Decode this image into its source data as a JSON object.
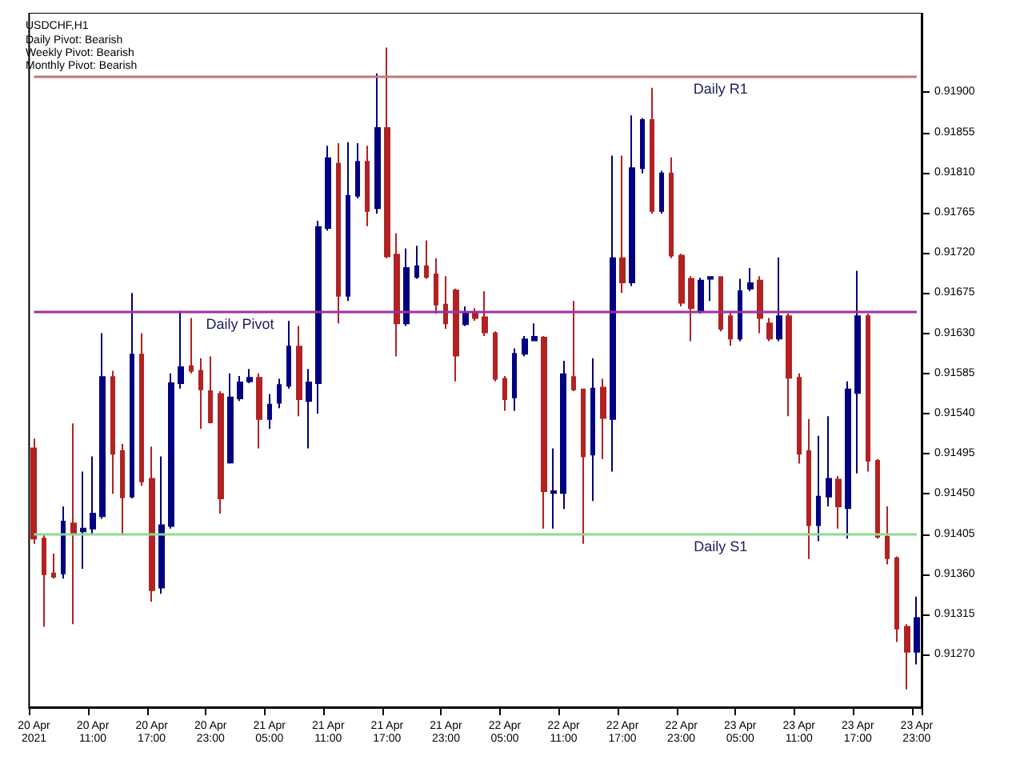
{
  "chart_data": {
    "type": "candlestick",
    "title": "USDCHF,H1",
    "annotations": [
      "Daily Pivot: Bearish",
      "Weekly Pivot: Bearish",
      "Monthly Pivot: Bearish"
    ],
    "categories": [
      "20 Apr 2021",
      null,
      null,
      null,
      null,
      null,
      "20 Apr 11:00",
      null,
      null,
      null,
      null,
      null,
      "20 Apr 17:00",
      null,
      null,
      null,
      null,
      null,
      "20 Apr 23:00",
      null,
      null,
      null,
      null,
      null,
      "21 Apr 05:00",
      null,
      null,
      null,
      null,
      null,
      "21 Apr 11:00",
      null,
      null,
      null,
      null,
      null,
      "21 Apr 17:00",
      null,
      null,
      null,
      null,
      null,
      "21 Apr 23:00",
      null,
      null,
      null,
      null,
      null,
      "22 Apr 05:00",
      null,
      null,
      null,
      null,
      null,
      "22 Apr 11:00",
      null,
      null,
      null,
      null,
      null,
      "22 Apr 17:00",
      null,
      null,
      null,
      null,
      null,
      "22 Apr 23:00",
      null,
      null,
      null,
      null,
      null,
      "23 Apr 05:00",
      null,
      null,
      null,
      null,
      null,
      "23 Apr 11:00",
      null,
      null,
      null,
      null,
      null,
      "23 Apr 17:00",
      null,
      null,
      null,
      null,
      null,
      "23 Apr 23:00"
    ],
    "ohlc": [
      [
        0.91501,
        0.91512,
        0.91394,
        0.914
      ],
      [
        0.914,
        0.91405,
        0.91301,
        0.9136
      ],
      [
        0.91361,
        0.91383,
        0.91355,
        0.91357
      ],
      [
        0.91361,
        0.91436,
        0.91355,
        0.91419
      ],
      [
        0.91417,
        0.91529,
        0.91304,
        0.91405
      ],
      [
        0.91408,
        0.91475,
        0.91366,
        0.91411
      ],
      [
        0.91411,
        0.91492,
        0.91405,
        0.91428
      ],
      [
        0.91425,
        0.9163,
        0.91422,
        0.91581
      ],
      [
        0.91581,
        0.91588,
        0.9145,
        0.91495
      ],
      [
        0.91498,
        0.91506,
        0.91405,
        0.91446
      ],
      [
        0.91447,
        0.91675,
        0.91445,
        0.91606
      ],
      [
        0.91606,
        0.9163,
        0.91459,
        0.91464
      ],
      [
        0.91467,
        0.91503,
        0.91329,
        0.91342
      ],
      [
        0.91345,
        0.91492,
        0.91338,
        0.91415
      ],
      [
        0.91414,
        0.91585,
        0.91411,
        0.91574
      ],
      [
        0.91574,
        0.91655,
        0.91568,
        0.91592
      ],
      [
        0.91593,
        0.91647,
        0.91585,
        0.91588
      ],
      [
        0.91588,
        0.91602,
        0.91523,
        0.91567
      ],
      [
        0.91565,
        0.91604,
        0.91529,
        0.9153
      ],
      [
        0.91562,
        0.91565,
        0.91428,
        0.91445
      ],
      [
        0.91485,
        0.91585,
        0.91484,
        0.91558
      ],
      [
        0.91557,
        0.91582,
        0.91554,
        0.91575
      ],
      [
        0.91576,
        0.9159,
        0.91574,
        0.9158
      ],
      [
        0.9158,
        0.91585,
        0.91501,
        0.91534
      ],
      [
        0.91534,
        0.91562,
        0.91523,
        0.9155
      ],
      [
        0.91552,
        0.91579,
        0.91546,
        0.91572
      ],
      [
        0.91571,
        0.91644,
        0.91568,
        0.91615
      ],
      [
        0.91615,
        0.91638,
        0.91537,
        0.91556
      ],
      [
        0.91554,
        0.9159,
        0.91501,
        0.91575
      ],
      [
        0.91574,
        0.91756,
        0.9154,
        0.91749
      ],
      [
        0.91748,
        0.9184,
        0.91745,
        0.91826
      ],
      [
        0.9182,
        0.91843,
        0.91641,
        0.91672
      ],
      [
        0.91672,
        0.91844,
        0.91666,
        0.91784
      ],
      [
        0.91784,
        0.91843,
        0.91781,
        0.91822
      ],
      [
        0.91822,
        0.9184,
        0.9175,
        0.91767
      ],
      [
        0.9177,
        0.91921,
        0.91764,
        0.9186
      ],
      [
        0.9186,
        0.9195,
        0.91714,
        0.91716
      ],
      [
        0.91718,
        0.91742,
        0.91604,
        0.91641
      ],
      [
        0.91641,
        0.91725,
        0.91638,
        0.91703
      ],
      [
        0.91693,
        0.91728,
        0.91691,
        0.91705
      ],
      [
        0.91705,
        0.91734,
        0.91691,
        0.91693
      ],
      [
        0.91696,
        0.91714,
        0.91652,
        0.91662
      ],
      [
        0.91662,
        0.91694,
        0.91635,
        0.91641
      ],
      [
        0.91678,
        0.9168,
        0.91576,
        0.91605
      ],
      [
        0.9164,
        0.9166,
        0.91638,
        0.91652
      ],
      [
        0.91652,
        0.91658,
        0.91644,
        0.91647
      ],
      [
        0.91648,
        0.91677,
        0.91627,
        0.91631
      ],
      [
        0.9163,
        0.91632,
        0.91576,
        0.91579
      ],
      [
        0.91579,
        0.91582,
        0.91543,
        0.91556
      ],
      [
        0.91558,
        0.91613,
        0.91543,
        0.91607
      ],
      [
        0.91607,
        0.91627,
        0.91604,
        0.91623
      ],
      [
        0.91622,
        0.91641,
        0.91621,
        0.91626
      ],
      [
        0.91625,
        0.91627,
        0.91411,
        0.91453
      ],
      [
        0.91451,
        0.91501,
        0.91411,
        0.91453
      ],
      [
        0.91451,
        0.91599,
        0.91433,
        0.91584
      ],
      [
        0.91581,
        0.91666,
        0.91565,
        0.91567
      ],
      [
        0.91567,
        0.91568,
        0.91394,
        0.91492
      ],
      [
        0.91494,
        0.91602,
        0.91442,
        0.91568
      ],
      [
        0.91569,
        0.91579,
        0.91489,
        0.91535
      ],
      [
        0.91534,
        0.91829,
        0.91475,
        0.91714
      ],
      [
        0.91714,
        0.91829,
        0.91675,
        0.91687
      ],
      [
        0.91687,
        0.91874,
        0.91683,
        0.91815
      ],
      [
        0.91815,
        0.91871,
        0.91809,
        0.91869
      ],
      [
        0.91869,
        0.91905,
        0.91764,
        0.91767
      ],
      [
        0.91767,
        0.91812,
        0.91764,
        0.91809
      ],
      [
        0.91809,
        0.91827,
        0.91714,
        0.91717
      ],
      [
        0.91717,
        0.91719,
        0.9166,
        0.91664
      ],
      [
        0.91691,
        0.91694,
        0.91621,
        0.91658
      ],
      [
        0.91655,
        0.91692,
        0.91652,
        0.91689
      ],
      [
        0.91691,
        0.91694,
        0.91666,
        0.91693
      ],
      [
        0.91693,
        0.91694,
        0.91632,
        0.91635
      ],
      [
        0.91649,
        0.91655,
        0.91616,
        0.91624
      ],
      [
        0.91624,
        0.91691,
        0.91621,
        0.91677
      ],
      [
        0.9168,
        0.91703,
        0.91677,
        0.91686
      ],
      [
        0.91689,
        0.91694,
        0.9163,
        0.91647
      ],
      [
        0.91641,
        0.91647,
        0.91621,
        0.91624
      ],
      [
        0.91624,
        0.91715,
        0.91621,
        0.91649
      ],
      [
        0.91649,
        0.91652,
        0.91537,
        0.9158
      ],
      [
        0.9158,
        0.91585,
        0.91484,
        0.91495
      ],
      [
        0.91498,
        0.91534,
        0.91377,
        0.91415
      ],
      [
        0.91415,
        0.91515,
        0.91397,
        0.91447
      ],
      [
        0.91447,
        0.91537,
        0.91436,
        0.91467
      ],
      [
        0.91466,
        0.9147,
        0.91411,
        0.91436
      ],
      [
        0.91434,
        0.91576,
        0.914,
        0.91567
      ],
      [
        0.91563,
        0.917,
        0.91473,
        0.91649
      ],
      [
        0.91649,
        0.91652,
        0.91475,
        0.91487
      ],
      [
        0.91487,
        0.91489,
        0.914,
        0.91402
      ],
      [
        0.91402,
        0.91436,
        0.91371,
        0.91378
      ],
      [
        0.91378,
        0.9138,
        0.91284,
        0.91299
      ],
      [
        0.91301,
        0.91304,
        0.91231,
        0.91273
      ],
      [
        0.91273,
        0.91335,
        0.91259,
        0.91311
      ]
    ],
    "colors": [
      "#b22222",
      "#b22222",
      "#b22222",
      "#000080",
      "#b22222",
      "#000080",
      "#000080",
      "#000080",
      "#b22222",
      "#b22222",
      "#000080",
      "#b22222",
      "#b22222",
      "#000080",
      "#000080",
      "#000080",
      "#b22222",
      "#b22222",
      "#b22222",
      "#b22222",
      "#000080",
      "#000080",
      "#000080",
      "#b22222",
      "#000080",
      "#000080",
      "#000080",
      "#b22222",
      "#000080",
      "#000080",
      "#000080",
      "#b22222",
      "#000080",
      "#000080",
      "#b22222",
      "#000080",
      "#b22222",
      "#b22222",
      "#000080",
      "#000080",
      "#b22222",
      "#b22222",
      "#b22222",
      "#b22222",
      "#000080",
      "#b22222",
      "#b22222",
      "#b22222",
      "#b22222",
      "#000080",
      "#000080",
      "#000080",
      "#b22222",
      "#000080",
      "#000080",
      "#b22222",
      "#b22222",
      "#000080",
      "#b22222",
      "#000080",
      "#b22222",
      "#000080",
      "#000080",
      "#b22222",
      "#000080",
      "#b22222",
      "#b22222",
      "#b22222",
      "#000080",
      "#000080",
      "#b22222",
      "#b22222",
      "#000080",
      "#000080",
      "#b22222",
      "#b22222",
      "#000080",
      "#b22222",
      "#b22222",
      "#b22222",
      "#000080",
      "#000080",
      "#b22222",
      "#000080",
      "#000080",
      "#b22222",
      "#b22222",
      "#b22222",
      "#b22222",
      "#b22222",
      "#000080"
    ],
    "ylim": [
      0.91211,
      0.91989
    ],
    "yticks": [
      {
        "value": 0.9127,
        "label": "0.91270"
      },
      {
        "value": 0.91315,
        "label": "0.91315"
      },
      {
        "value": 0.9136,
        "label": "0.91360"
      },
      {
        "value": 0.91405,
        "label": "0.91405"
      },
      {
        "value": 0.9145,
        "label": "0.91450"
      },
      {
        "value": 0.91495,
        "label": "0.91495"
      },
      {
        "value": 0.9154,
        "label": "0.91540"
      },
      {
        "value": 0.91585,
        "label": "0.91585"
      },
      {
        "value": 0.9163,
        "label": "0.91630"
      },
      {
        "value": 0.91675,
        "label": "0.91675"
      },
      {
        "value": 0.9172,
        "label": "0.91720"
      },
      {
        "value": 0.91765,
        "label": "0.91765"
      },
      {
        "value": 0.9181,
        "label": "0.91810"
      },
      {
        "value": 0.91855,
        "label": "0.91855"
      },
      {
        "value": 0.919,
        "label": "0.91900"
      }
    ],
    "ref_lines": [
      {
        "axis": "y",
        "value": 0.91917,
        "label": "Daily R1",
        "color": "#c07878"
      },
      {
        "axis": "y",
        "value": 0.91654,
        "label": "Daily Pivot",
        "color": "#a030a0"
      },
      {
        "axis": "y",
        "value": 0.91405,
        "label": "Daily S1",
        "color": "#90d890"
      }
    ],
    "grid": false
  }
}
